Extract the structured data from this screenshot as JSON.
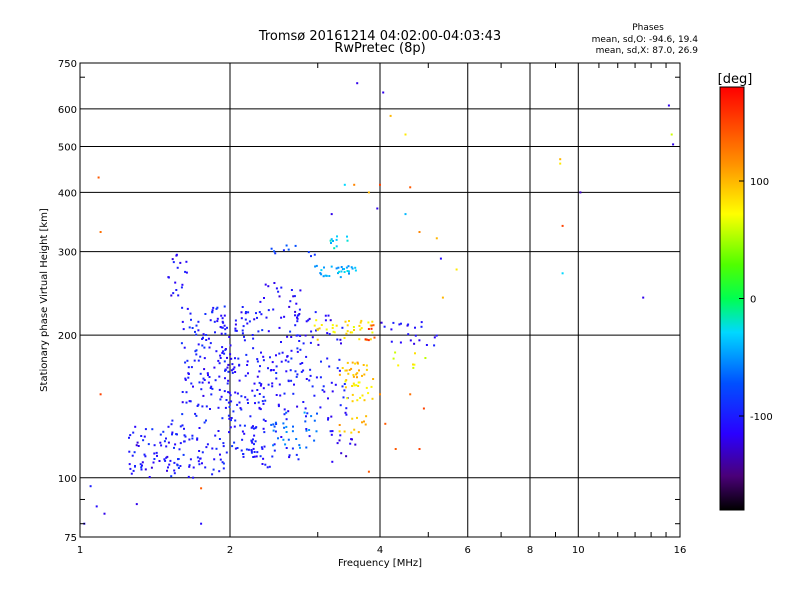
{
  "chart_data": {
    "type": "scatter",
    "title": "Tromsø 20161214 04:02:00-04:03:43",
    "subtitle": "RwPretec (8p)",
    "xlabel": "Frequency [MHz]",
    "ylabel": "Stationary phase Virtual Height [km]",
    "x_scale": "log",
    "y_scale": "log",
    "xlim": [
      1,
      16
    ],
    "ylim": [
      75,
      750
    ],
    "x_ticks": [
      1,
      2,
      4,
      6,
      8,
      10,
      16
    ],
    "x_tick_labels": [
      "1",
      "2",
      "4",
      "6",
      "8",
      "10",
      "16"
    ],
    "y_ticks": [
      75,
      100,
      200,
      300,
      400,
      500,
      600,
      750
    ],
    "y_tick_labels": [
      "75",
      "100",
      "200",
      "300",
      "400",
      "500",
      "600",
      "750"
    ],
    "grid": true,
    "stats": {
      "heading": "Phases",
      "line_o": "mean, sd,O: -94.6, 19.4",
      "line_x": "mean, sd,X:  87.0, 26.9"
    },
    "colorbar": {
      "label": "[deg]",
      "range": [
        -180,
        180
      ],
      "ticks": [
        100,
        0,
        -100
      ],
      "tick_labels": [
        "100",
        "0",
        "-100"
      ]
    },
    "clusters": [
      {
        "x": [
          1.25,
          1.75
        ],
        "y": [
          100,
          130
        ],
        "phase": -100,
        "n": 55
      },
      {
        "x": [
          1.25,
          1.55
        ],
        "y": [
          103,
          120
        ],
        "phase": -110,
        "n": 25
      },
      {
        "x": [
          1.5,
          1.95
        ],
        "y": [
          100,
          140
        ],
        "phase": -100,
        "n": 50
      },
      {
        "x": [
          1.6,
          2.1
        ],
        "y": [
          140,
          180
        ],
        "phase": -105,
        "n": 70
      },
      {
        "x": [
          1.6,
          2.0
        ],
        "y": [
          180,
          230
        ],
        "phase": -100,
        "n": 60
      },
      {
        "x": [
          1.5,
          1.65
        ],
        "y": [
          240,
          300
        ],
        "phase": -110,
        "n": 18
      },
      {
        "x": [
          1.95,
          2.4
        ],
        "y": [
          110,
          160
        ],
        "phase": -100,
        "n": 65
      },
      {
        "x": [
          1.95,
          2.3
        ],
        "y": [
          160,
          230
        ],
        "phase": -105,
        "n": 55
      },
      {
        "x": [
          2.2,
          2.8
        ],
        "y": [
          105,
          160
        ],
        "phase": -105,
        "n": 55
      },
      {
        "x": [
          2.3,
          2.8
        ],
        "y": [
          160,
          210
        ],
        "phase": -100,
        "n": 45
      },
      {
        "x": [
          2.3,
          2.8
        ],
        "y": [
          215,
          260
        ],
        "phase": -110,
        "n": 25
      },
      {
        "x": [
          2.4,
          3.0
        ],
        "y": [
          115,
          140
        ],
        "phase": -60,
        "n": 30
      },
      {
        "x": [
          2.8,
          3.5
        ],
        "y": [
          120,
          180
        ],
        "phase": -105,
        "n": 45
      },
      {
        "x": [
          2.7,
          3.4
        ],
        "y": [
          190,
          225
        ],
        "phase": -110,
        "n": 30
      },
      {
        "x": [
          2.9,
          3.6
        ],
        "y": [
          265,
          280
        ],
        "phase": -40,
        "n": 30
      },
      {
        "x": [
          3.1,
          3.45
        ],
        "y": [
          305,
          330
        ],
        "phase": -30,
        "n": 10
      },
      {
        "x": [
          2.4,
          3.0
        ],
        "y": [
          290,
          310
        ],
        "phase": -80,
        "n": 10
      },
      {
        "x": [
          2.95,
          3.9
        ],
        "y": [
          195,
          215
        ],
        "phase": 80,
        "n": 35
      },
      {
        "x": [
          3.3,
          3.9
        ],
        "y": [
          160,
          175
        ],
        "phase": 100,
        "n": 25
      },
      {
        "x": [
          3.4,
          3.9
        ],
        "y": [
          145,
          160
        ],
        "phase": 80,
        "n": 20
      },
      {
        "x": [
          3.3,
          3.8
        ],
        "y": [
          120,
          140
        ],
        "phase": 100,
        "n": 12
      },
      {
        "x": [
          3.7,
          4.0
        ],
        "y": [
          195,
          210
        ],
        "phase": 150,
        "n": 8
      },
      {
        "x": [
          4.0,
          5.3
        ],
        "y": [
          190,
          215
        ],
        "phase": -110,
        "n": 22
      },
      {
        "x": [
          4.2,
          5.0
        ],
        "y": [
          170,
          185
        ],
        "phase": 70,
        "n": 8
      },
      {
        "x": [
          3.1,
          3.6
        ],
        "y": [
          105,
          125
        ],
        "phase": -120,
        "n": 10
      }
    ],
    "points": [
      {
        "x": 1.02,
        "y": 80,
        "phase": -110
      },
      {
        "x": 1.05,
        "y": 96,
        "phase": -100
      },
      {
        "x": 1.08,
        "y": 87,
        "phase": -110
      },
      {
        "x": 1.12,
        "y": 84,
        "phase": -120
      },
      {
        "x": 1.3,
        "y": 88,
        "phase": -120
      },
      {
        "x": 1.75,
        "y": 80,
        "phase": -110
      },
      {
        "x": 1.1,
        "y": 330,
        "phase": 130
      },
      {
        "x": 1.09,
        "y": 430,
        "phase": 140
      },
      {
        "x": 1.1,
        "y": 150,
        "phase": 150
      },
      {
        "x": 1.75,
        "y": 95,
        "phase": 140
      },
      {
        "x": 3.6,
        "y": 680,
        "phase": -120
      },
      {
        "x": 4.06,
        "y": 650,
        "phase": -120
      },
      {
        "x": 4.2,
        "y": 580,
        "phase": 100
      },
      {
        "x": 4.5,
        "y": 530,
        "phase": 80
      },
      {
        "x": 4.0,
        "y": 415,
        "phase": 150
      },
      {
        "x": 4.6,
        "y": 410,
        "phase": 140
      },
      {
        "x": 3.4,
        "y": 415,
        "phase": -30
      },
      {
        "x": 3.55,
        "y": 415,
        "phase": 120
      },
      {
        "x": 3.8,
        "y": 400,
        "phase": 100
      },
      {
        "x": 3.95,
        "y": 370,
        "phase": -120
      },
      {
        "x": 4.5,
        "y": 360,
        "phase": -40
      },
      {
        "x": 4.8,
        "y": 330,
        "phase": 120
      },
      {
        "x": 5.2,
        "y": 320,
        "phase": 100
      },
      {
        "x": 5.7,
        "y": 275,
        "phase": 80
      },
      {
        "x": 5.3,
        "y": 290,
        "phase": -110
      },
      {
        "x": 5.35,
        "y": 240,
        "phase": 100
      },
      {
        "x": 3.2,
        "y": 360,
        "phase": -120
      },
      {
        "x": 9.2,
        "y": 470,
        "phase": 100
      },
      {
        "x": 9.2,
        "y": 460,
        "phase": 80
      },
      {
        "x": 9.3,
        "y": 340,
        "phase": 150
      },
      {
        "x": 9.3,
        "y": 270,
        "phase": -30
      },
      {
        "x": 10.1,
        "y": 400,
        "phase": -130
      },
      {
        "x": 13.5,
        "y": 240,
        "phase": -120
      },
      {
        "x": 15.2,
        "y": 610,
        "phase": -120
      },
      {
        "x": 15.4,
        "y": 530,
        "phase": 60
      },
      {
        "x": 15.5,
        "y": 505,
        "phase": -120
      },
      {
        "x": 4.1,
        "y": 130,
        "phase": 140
      },
      {
        "x": 4.3,
        "y": 115,
        "phase": 140
      },
      {
        "x": 4.8,
        "y": 115,
        "phase": 150
      },
      {
        "x": 4.9,
        "y": 140,
        "phase": 150
      },
      {
        "x": 4.6,
        "y": 150,
        "phase": 130
      },
      {
        "x": 4.0,
        "y": 150,
        "phase": 120
      },
      {
        "x": 3.8,
        "y": 103,
        "phase": 140
      }
    ]
  }
}
